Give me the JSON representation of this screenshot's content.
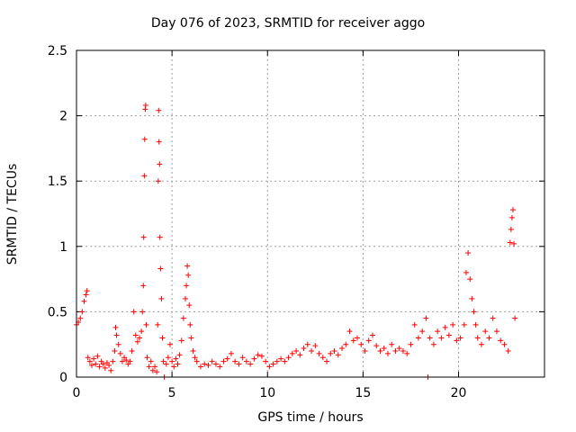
{
  "chart_data": {
    "type": "scatter",
    "title": "Day 076 of 2023, SRMTID for receiver aggo",
    "xlabel": "GPS time / hours",
    "ylabel": "SRMTID / TECUs",
    "xlim": [
      0,
      24.5
    ],
    "ylim": [
      0,
      2.5
    ],
    "xticks": [
      0,
      5,
      10,
      15,
      20
    ],
    "yticks": [
      0,
      0.5,
      1,
      1.5,
      2,
      2.5
    ],
    "xtick_labels": [
      "0",
      "5",
      "10",
      "15",
      "20"
    ],
    "ytick_labels": [
      "0",
      "0.5",
      "1",
      "1.5",
      "2",
      "2.5"
    ],
    "grid": true,
    "marker": "+",
    "series": [
      {
        "name": "SRMTID",
        "color": "#ff0000",
        "points": [
          [
            0.0,
            0.4
          ],
          [
            0.1,
            0.42
          ],
          [
            0.2,
            0.45
          ],
          [
            0.3,
            0.5
          ],
          [
            0.4,
            0.58
          ],
          [
            0.5,
            0.63
          ],
          [
            0.55,
            0.66
          ],
          [
            0.6,
            0.15
          ],
          [
            0.7,
            0.12
          ],
          [
            0.8,
            0.09
          ],
          [
            0.9,
            0.14
          ],
          [
            1.0,
            0.1
          ],
          [
            1.1,
            0.16
          ],
          [
            1.2,
            0.08
          ],
          [
            1.3,
            0.12
          ],
          [
            1.4,
            0.1
          ],
          [
            1.5,
            0.07
          ],
          [
            1.6,
            0.11
          ],
          [
            1.7,
            0.09
          ],
          [
            1.8,
            0.05
          ],
          [
            1.9,
            0.12
          ],
          [
            2.0,
            0.2
          ],
          [
            2.05,
            0.38
          ],
          [
            2.1,
            0.32
          ],
          [
            2.2,
            0.25
          ],
          [
            2.3,
            0.18
          ],
          [
            2.4,
            0.12
          ],
          [
            2.5,
            0.15
          ],
          [
            2.6,
            0.13
          ],
          [
            2.7,
            0.1
          ],
          [
            2.8,
            0.12
          ],
          [
            2.9,
            0.2
          ],
          [
            3.0,
            0.5
          ],
          [
            3.1,
            0.32
          ],
          [
            3.2,
            0.27
          ],
          [
            3.3,
            0.3
          ],
          [
            3.4,
            0.35
          ],
          [
            3.45,
            0.5
          ],
          [
            3.5,
            0.7
          ],
          [
            3.52,
            1.07
          ],
          [
            3.55,
            1.54
          ],
          [
            3.57,
            1.82
          ],
          [
            3.6,
            2.05
          ],
          [
            3.62,
            2.08
          ],
          [
            3.65,
            0.4
          ],
          [
            3.7,
            0.15
          ],
          [
            3.8,
            0.08
          ],
          [
            3.9,
            0.12
          ],
          [
            4.0,
            0.05
          ],
          [
            4.1,
            0.08
          ],
          [
            4.2,
            0.04
          ],
          [
            4.25,
            0.4
          ],
          [
            4.28,
            1.5
          ],
          [
            4.3,
            2.04
          ],
          [
            4.32,
            1.8
          ],
          [
            4.35,
            1.63
          ],
          [
            4.37,
            1.07
          ],
          [
            4.4,
            0.83
          ],
          [
            4.45,
            0.6
          ],
          [
            4.5,
            0.3
          ],
          [
            4.55,
            0.12
          ],
          [
            4.6,
            0.0
          ],
          [
            4.7,
            0.1
          ],
          [
            4.8,
            0.15
          ],
          [
            4.9,
            0.25
          ],
          [
            5.0,
            0.12
          ],
          [
            5.1,
            0.08
          ],
          [
            5.2,
            0.14
          ],
          [
            5.3,
            0.1
          ],
          [
            5.4,
            0.17
          ],
          [
            5.5,
            0.28
          ],
          [
            5.6,
            0.45
          ],
          [
            5.7,
            0.6
          ],
          [
            5.75,
            0.7
          ],
          [
            5.8,
            0.85
          ],
          [
            5.85,
            0.78
          ],
          [
            5.9,
            0.55
          ],
          [
            5.95,
            0.4
          ],
          [
            6.0,
            0.3
          ],
          [
            6.1,
            0.2
          ],
          [
            6.2,
            0.15
          ],
          [
            6.3,
            0.12
          ],
          [
            6.5,
            0.08
          ],
          [
            6.7,
            0.1
          ],
          [
            6.9,
            0.09
          ],
          [
            7.1,
            0.12
          ],
          [
            7.3,
            0.1
          ],
          [
            7.5,
            0.08
          ],
          [
            7.7,
            0.12
          ],
          [
            7.9,
            0.14
          ],
          [
            8.1,
            0.18
          ],
          [
            8.3,
            0.12
          ],
          [
            8.5,
            0.1
          ],
          [
            8.7,
            0.15
          ],
          [
            8.9,
            0.12
          ],
          [
            9.1,
            0.1
          ],
          [
            9.3,
            0.14
          ],
          [
            9.5,
            0.17
          ],
          [
            9.7,
            0.16
          ],
          [
            9.9,
            0.12
          ],
          [
            10.1,
            0.08
          ],
          [
            10.3,
            0.1
          ],
          [
            10.5,
            0.12
          ],
          [
            10.7,
            0.14
          ],
          [
            10.9,
            0.12
          ],
          [
            11.1,
            0.15
          ],
          [
            11.3,
            0.18
          ],
          [
            11.5,
            0.2
          ],
          [
            11.7,
            0.17
          ],
          [
            11.9,
            0.22
          ],
          [
            12.1,
            0.25
          ],
          [
            12.3,
            0.2
          ],
          [
            12.5,
            0.24
          ],
          [
            12.7,
            0.18
          ],
          [
            12.9,
            0.15
          ],
          [
            13.1,
            0.12
          ],
          [
            13.3,
            0.18
          ],
          [
            13.5,
            0.2
          ],
          [
            13.7,
            0.17
          ],
          [
            13.9,
            0.22
          ],
          [
            14.1,
            0.25
          ],
          [
            14.3,
            0.35
          ],
          [
            14.5,
            0.28
          ],
          [
            14.7,
            0.3
          ],
          [
            14.9,
            0.25
          ],
          [
            15.1,
            0.2
          ],
          [
            15.3,
            0.28
          ],
          [
            15.5,
            0.32
          ],
          [
            15.7,
            0.24
          ],
          [
            15.9,
            0.2
          ],
          [
            16.1,
            0.22
          ],
          [
            16.3,
            0.18
          ],
          [
            16.5,
            0.25
          ],
          [
            16.7,
            0.2
          ],
          [
            16.9,
            0.22
          ],
          [
            17.1,
            0.2
          ],
          [
            17.3,
            0.18
          ],
          [
            17.5,
            0.25
          ],
          [
            17.7,
            0.4
          ],
          [
            17.9,
            0.3
          ],
          [
            18.1,
            0.35
          ],
          [
            18.3,
            0.45
          ],
          [
            18.4,
            0.0
          ],
          [
            18.5,
            0.3
          ],
          [
            18.7,
            0.25
          ],
          [
            18.9,
            0.35
          ],
          [
            19.1,
            0.3
          ],
          [
            19.3,
            0.38
          ],
          [
            19.5,
            0.32
          ],
          [
            19.7,
            0.4
          ],
          [
            19.9,
            0.28
          ],
          [
            20.1,
            0.3
          ],
          [
            20.3,
            0.4
          ],
          [
            20.4,
            0.8
          ],
          [
            20.5,
            0.95
          ],
          [
            20.6,
            0.75
          ],
          [
            20.7,
            0.6
          ],
          [
            20.8,
            0.5
          ],
          [
            20.9,
            0.4
          ],
          [
            21.0,
            0.3
          ],
          [
            21.2,
            0.25
          ],
          [
            21.4,
            0.35
          ],
          [
            21.6,
            0.3
          ],
          [
            21.8,
            0.45
          ],
          [
            22.0,
            0.35
          ],
          [
            22.2,
            0.28
          ],
          [
            22.4,
            0.25
          ],
          [
            22.6,
            0.2
          ],
          [
            22.7,
            1.03
          ],
          [
            22.75,
            1.13
          ],
          [
            22.8,
            1.22
          ],
          [
            22.85,
            1.28
          ],
          [
            22.9,
            1.02
          ],
          [
            22.95,
            0.45
          ]
        ]
      }
    ]
  }
}
